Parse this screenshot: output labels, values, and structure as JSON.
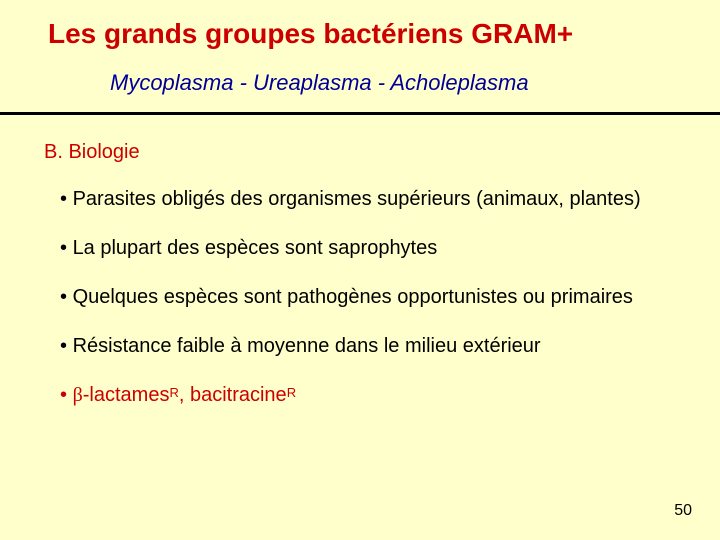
{
  "colors": {
    "background": "#ffffcc",
    "title": "#cc0000",
    "subtitle": "#000099",
    "section_heading": "#cc0000",
    "body_text": "#000000",
    "hr": "#000000"
  },
  "typography": {
    "title_fontsize": 28,
    "subtitle_fontsize": 22,
    "section_fontsize": 20,
    "bullet_fontsize": 20,
    "pagenum_fontsize": 16
  },
  "title": "Les grands groupes bactériens GRAM+",
  "subtitle": "Mycoplasma - Ureaplasma - Acholeplasma",
  "section_heading": "B. Biologie",
  "bullets": [
    {
      "text": "Parasites obligés des organismes supérieurs (animaux, plantes)",
      "color": "#000000"
    },
    {
      "text": "La plupart des espèces sont saprophytes",
      "color": "#000000"
    },
    {
      "text": "Quelques espèces sont pathogènes opportunistes ou primaires",
      "color": "#000000"
    },
    {
      "text": "Résistance faible à moyenne dans le milieu extérieur",
      "color": "#000000"
    }
  ],
  "last_bullet": {
    "beta": "β",
    "part1": "-lactames",
    "sup1": "R",
    "sep": ", bacitracine",
    "sup2": "R",
    "color": "#cc0000"
  },
  "page_number": "50"
}
